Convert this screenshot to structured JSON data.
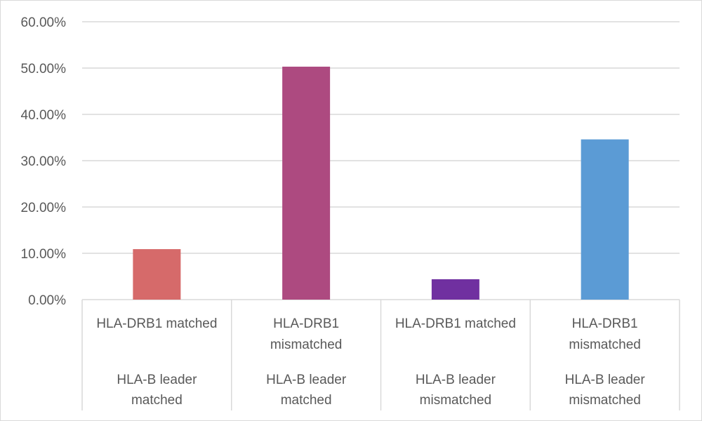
{
  "chart_data": {
    "type": "bar",
    "title": "",
    "xlabel": "",
    "ylabel": "",
    "ylim": [
      0,
      60
    ],
    "y_ticks": [
      "0.00%",
      "10.00%",
      "20.00%",
      "30.00%",
      "40.00%",
      "50.00%",
      "60.00%"
    ],
    "grid": true,
    "categories": [
      {
        "line1": "HLA-DRB1 matched",
        "line2": "",
        "line3": "HLA-B leader",
        "line4": "matched"
      },
      {
        "line1": "HLA-DRB1",
        "line2": "mismatched",
        "line3": "HLA-B leader",
        "line4": "matched"
      },
      {
        "line1": "HLA-DRB1 matched",
        "line2": "",
        "line3": "HLA-B leader",
        "line4": "mismatched"
      },
      {
        "line1": "HLA-DRB1",
        "line2": "mismatched",
        "line3": "HLA-B leader",
        "line4": "mismatched"
      }
    ],
    "values": [
      10.9,
      50.3,
      4.4,
      34.6
    ],
    "colors": [
      "#d66a6a",
      "#ad4a80",
      "#7030a0",
      "#5b9bd5"
    ]
  }
}
